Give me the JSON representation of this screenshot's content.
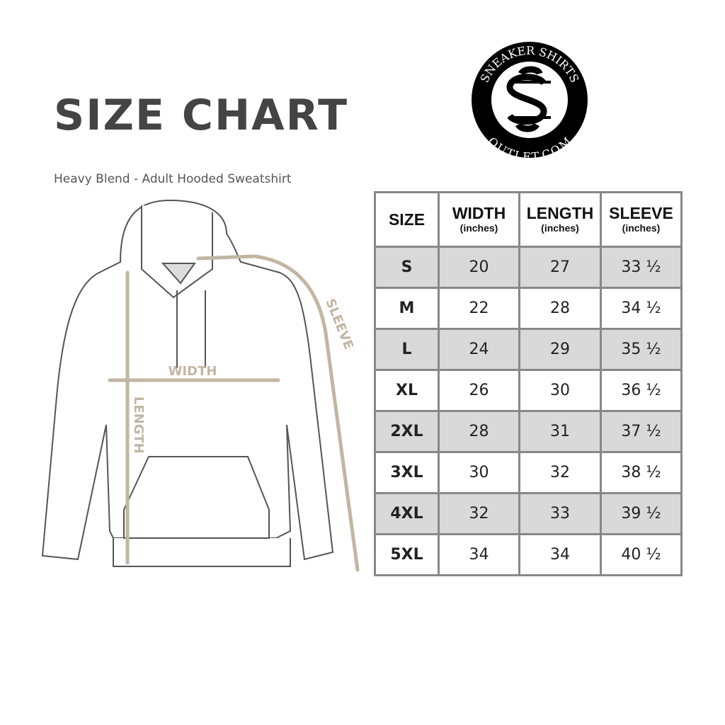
{
  "title": "SIZE CHART",
  "subtitle": "Heavy Blend - Adult Hooded Sweatshirt",
  "logo": {
    "top_text": "SNEAKER SHIRTS",
    "bottom_text": "OUTLET.COM",
    "monogram": "SS"
  },
  "diagram": {
    "width_label": "WIDTH",
    "length_label": "LENGTH",
    "sleeve_label": "SLEEVE",
    "arrow_color": "#c2b6a3"
  },
  "table": {
    "headers": [
      {
        "label": "SIZE",
        "unit": ""
      },
      {
        "label": "WIDTH",
        "unit": "(inches)"
      },
      {
        "label": "LENGTH",
        "unit": "(inches)"
      },
      {
        "label": "SLEEVE",
        "unit": "(inches)"
      }
    ],
    "rows": [
      [
        "S",
        "20",
        "27",
        "33 ½"
      ],
      [
        "M",
        "22",
        "28",
        "34 ½"
      ],
      [
        "L",
        "24",
        "29",
        "35 ½"
      ],
      [
        "XL",
        "26",
        "30",
        "36 ½"
      ],
      [
        "2XL",
        "28",
        "31",
        "37 ½"
      ],
      [
        "3XL",
        "30",
        "32",
        "38 ½"
      ],
      [
        "4XL",
        "32",
        "33",
        "39 ½"
      ],
      [
        "5XL",
        "34",
        "34",
        "40 ½"
      ]
    ]
  }
}
